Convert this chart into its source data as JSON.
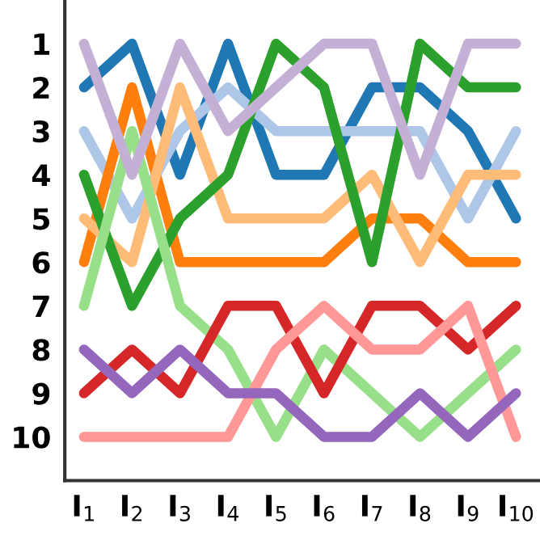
{
  "chart_data": {
    "type": "line",
    "categories": [
      "I$_{1}$",
      "I$_{2}$",
      "I$_{3}$",
      "I$_{4}$",
      "I$_{5}$",
      "I$_{6}$",
      "I$_{7}$",
      "I$_{8}$",
      "I$_{9}$",
      "I$_{10}$"
    ],
    "ylim": [
      11,
      0
    ],
    "yticks": [
      1,
      2,
      3,
      4,
      5,
      6,
      7,
      8,
      9,
      10
    ],
    "grid": false,
    "legend": false,
    "marker": "none",
    "line_style": "solid",
    "series": [
      {
        "color": "#1f77b4",
        "values": [
          2,
          1,
          4,
          1,
          4,
          4,
          2,
          2,
          3,
          5
        ]
      },
      {
        "color": "#aec7e8",
        "values": [
          3,
          5,
          3,
          2,
          3,
          3,
          3,
          3,
          5,
          3
        ]
      },
      {
        "color": "#ff7f0e",
        "values": [
          6,
          2,
          6,
          6,
          6,
          6,
          5,
          5,
          6,
          6
        ]
      },
      {
        "color": "#ffbb78",
        "values": [
          5,
          6,
          2,
          5,
          5,
          5,
          4,
          6,
          4,
          4
        ]
      },
      {
        "color": "#2ca02c",
        "values": [
          4,
          7,
          5,
          4,
          1,
          2,
          6,
          1,
          2,
          2
        ]
      },
      {
        "color": "#98df8a",
        "values": [
          7,
          3,
          7,
          8,
          10,
          8,
          9,
          10,
          9,
          8
        ]
      },
      {
        "color": "#d62728",
        "values": [
          9,
          8,
          9,
          7,
          7,
          9,
          7,
          7,
          8,
          7
        ]
      },
      {
        "color": "#ff9896",
        "values": [
          10,
          10,
          10,
          10,
          8,
          7,
          8,
          8,
          7,
          10
        ]
      },
      {
        "color": "#9467bd",
        "values": [
          8,
          9,
          8,
          9,
          9,
          10,
          10,
          9,
          10,
          9
        ]
      },
      {
        "color": "#c5b0d5",
        "values": [
          1,
          4,
          1,
          3,
          2,
          1,
          1,
          4,
          1,
          1
        ]
      }
    ]
  }
}
